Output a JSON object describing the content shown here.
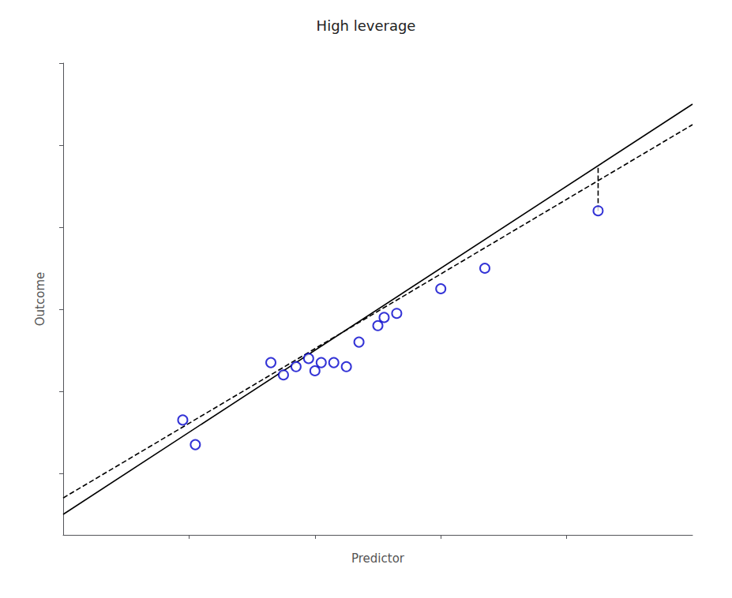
{
  "chart_data": {
    "type": "scatter",
    "title": "High leverage",
    "x_label": "Predictor",
    "y_label": "Outcome",
    "xlim": [
      0.0,
      1.0
    ],
    "ylim": [
      0.05,
      1.2
    ],
    "xticks": [
      0.2,
      0.4,
      0.6,
      0.8
    ],
    "yticks": [
      0.2,
      0.4,
      0.6,
      0.8,
      1.0,
      1.2
    ],
    "grid": false,
    "tick_labels": false,
    "series": [
      {
        "type": "scatter",
        "color": "#0000cc",
        "marker": "emptyCircle",
        "x": [
          0.19,
          0.21,
          0.33,
          0.35,
          0.37,
          0.39,
          0.4,
          0.41,
          0.43,
          0.45,
          0.47,
          0.5,
          0.51,
          0.53,
          0.6,
          0.67
        ],
        "values": [
          0.33,
          0.27,
          0.47,
          0.44,
          0.46,
          0.48,
          0.45,
          0.47,
          0.47,
          0.46,
          0.52,
          0.56,
          0.58,
          0.59,
          0.65,
          0.7
        ]
      },
      {
        "type": "scatter",
        "color": "#0000cc",
        "marker": "emptyCircle",
        "x": [
          0.85
        ],
        "values": [
          0.84
        ]
      },
      {
        "type": "line",
        "color": "#000000",
        "line_style": "solid",
        "x": [
          0.0,
          1.0
        ],
        "values": [
          0.1,
          1.1
        ]
      },
      {
        "type": "line",
        "color": "#000000",
        "line_style": "dashed",
        "x": [
          0.0,
          1.0
        ],
        "values": [
          0.14,
          1.05
        ]
      },
      {
        "type": "line",
        "color": "#000000",
        "line_style": "dashed",
        "x": [
          0.85,
          0.85
        ],
        "values": [
          0.84,
          0.95
        ]
      }
    ]
  }
}
